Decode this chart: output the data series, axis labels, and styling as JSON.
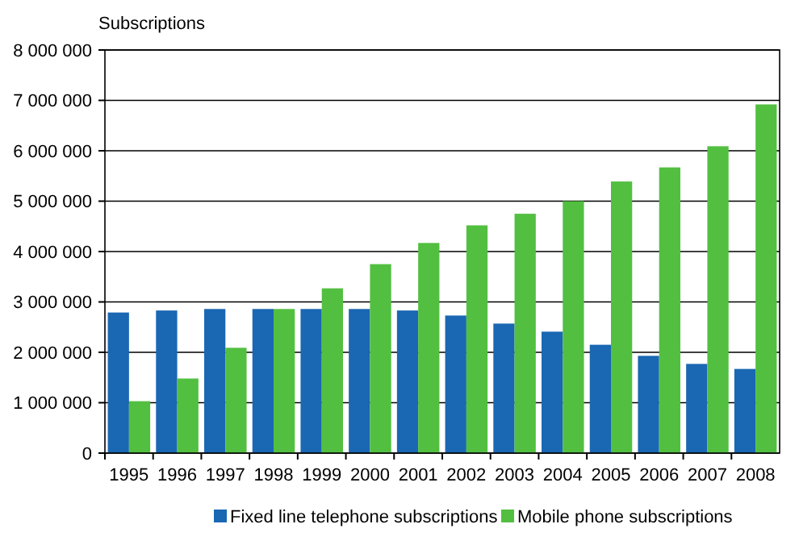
{
  "chart_data": {
    "type": "bar",
    "ylabel": "Subscriptions",
    "categories": [
      "1995",
      "1996",
      "1997",
      "1998",
      "1999",
      "2000",
      "2001",
      "2002",
      "2003",
      "2004",
      "2005",
      "2006",
      "2007",
      "2008"
    ],
    "series": [
      {
        "name": "Fixed line telephone subscriptions",
        "color": "#1a67b3",
        "values": [
          2790000,
          2830000,
          2860000,
          2860000,
          2860000,
          2860000,
          2830000,
          2730000,
          2570000,
          2410000,
          2150000,
          1930000,
          1770000,
          1670000
        ]
      },
      {
        "name": "Mobile phone subscriptions",
        "color": "#52bf40",
        "values": [
          1030000,
          1480000,
          2090000,
          2860000,
          3270000,
          3750000,
          4170000,
          4520000,
          4750000,
          5000000,
          5390000,
          5670000,
          6090000,
          6920000
        ]
      }
    ],
    "ylim": [
      0,
      8000000
    ],
    "yticks": [
      0,
      {
        "value": 1000000,
        "label": "1 000 000"
      },
      {
        "value": 2000000,
        "label": "2 000 000"
      },
      {
        "value": 3000000,
        "label": "3 000 000"
      },
      {
        "value": 4000000,
        "label": "4 000 000"
      },
      {
        "value": 5000000,
        "label": "5 000 000"
      },
      {
        "value": 6000000,
        "label": "6 000 000"
      },
      {
        "value": 7000000,
        "label": "7 000 000"
      },
      {
        "value": 8000000,
        "label": "8 000 000"
      }
    ],
    "grid": "y",
    "legend": "bottom"
  }
}
